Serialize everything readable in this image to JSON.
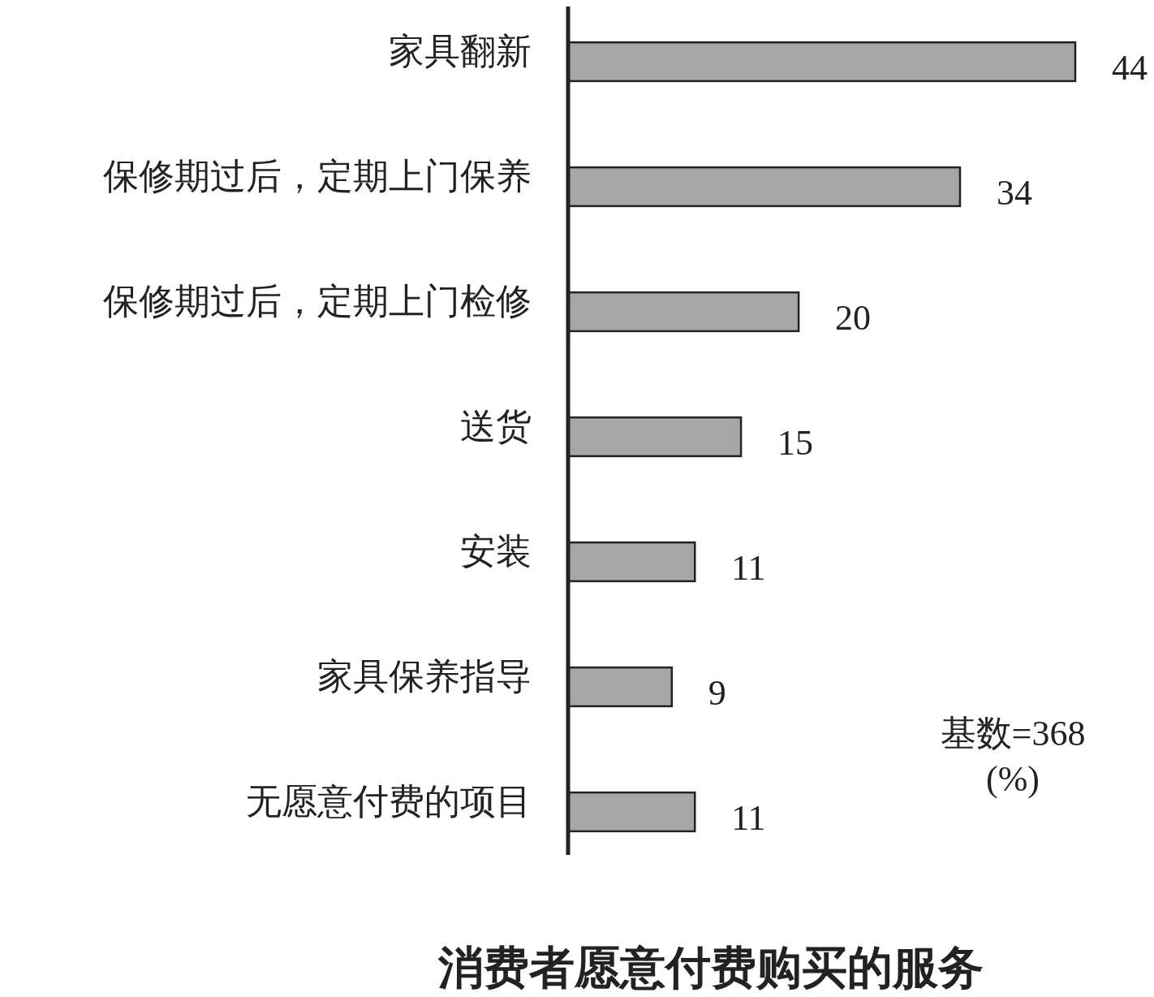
{
  "chart_data": {
    "type": "bar",
    "orientation": "horizontal",
    "title": "消费者愿意付费购买的服务",
    "categories": [
      "家具翻新",
      "保修期过后，定期上门保养",
      "保修期过后，定期上门检修",
      "送货",
      "安装",
      "家具保养指导",
      "无愿意付费的项目"
    ],
    "values": [
      44,
      34,
      20,
      15,
      11,
      9,
      11
    ],
    "color": "#a6a6a6",
    "data_labels": true,
    "annotations": [
      "基数=368",
      "(%)"
    ]
  }
}
